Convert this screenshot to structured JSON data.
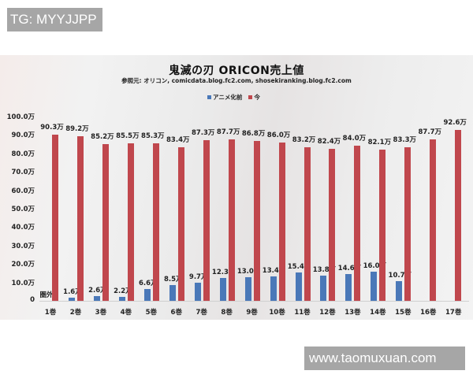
{
  "watermarks": {
    "top": "TG: MYYJJPP",
    "bottom": "www.taomuxuan.com"
  },
  "colors": {
    "before_anime": "#4a78b8",
    "now": "#c0474d"
  },
  "chart_data": {
    "type": "bar",
    "title": "鬼滅の刃 ORICON売上値",
    "subtitle": "参照元: オリコン, comicdata.blog.fc2.com, shosekiranking.blog.fc2.com",
    "xlabel": "",
    "ylabel": "",
    "ylim": [
      0,
      100
    ],
    "unit": "万",
    "legend_position": "top",
    "grid": false,
    "y_ticks": [
      "0",
      "10.0万",
      "20.0万",
      "30.0万",
      "40.0万",
      "50.0万",
      "60.0万",
      "70.0万",
      "80.0万",
      "90.0万",
      "100.0万"
    ],
    "categories": [
      "1巻",
      "2巻",
      "3巻",
      "4巻",
      "5巻",
      "6巻",
      "7巻",
      "8巻",
      "9巻",
      "10巻",
      "11巻",
      "12巻",
      "13巻",
      "14巻",
      "15巻",
      "16巻",
      "17巻"
    ],
    "series": [
      {
        "name": "アニメ化前",
        "color": "#4a78b8",
        "values": [
          null,
          1.6,
          2.6,
          2.2,
          6.6,
          8.5,
          9.7,
          12.3,
          13.0,
          13.4,
          15.4,
          13.8,
          14.6,
          16.0,
          10.7,
          null,
          null
        ],
        "labels": [
          "圏外",
          "1.6万",
          "2.6万",
          "2.2万",
          "6.6万",
          "8.5万",
          "9.7万",
          "12.3万",
          "13.0万",
          "13.4万",
          "15.4万",
          "13.8万",
          "14.6万",
          "16.0万",
          "10.7万",
          "",
          ""
        ]
      },
      {
        "name": "今",
        "color": "#c0474d",
        "values": [
          90.3,
          89.2,
          85.2,
          85.5,
          85.3,
          83.4,
          87.3,
          87.7,
          86.8,
          86.0,
          83.2,
          82.4,
          84.0,
          82.1,
          83.3,
          87.7,
          92.6
        ],
        "labels": [
          "90.3万",
          "89.2万",
          "85.2万",
          "85.5万",
          "85.3万",
          "83.4万",
          "87.3万",
          "87.7万",
          "86.8万",
          "86.0万",
          "83.2万",
          "82.4万",
          "84.0万",
          "82.1万",
          "83.3万",
          "87.7万",
          "92.6万"
        ]
      }
    ],
    "annotations": [
      "圏外"
    ]
  }
}
